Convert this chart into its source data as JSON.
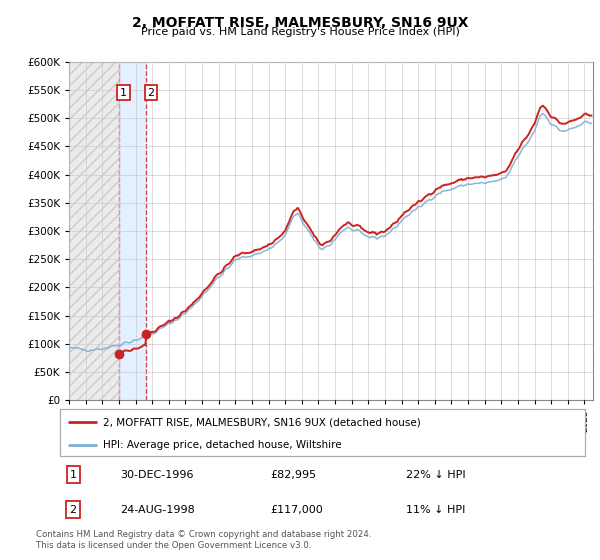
{
  "title": "2, MOFFATT RISE, MALMESBURY, SN16 9UX",
  "subtitle": "Price paid vs. HM Land Registry's House Price Index (HPI)",
  "legend_line1": "2, MOFFATT RISE, MALMESBURY, SN16 9UX (detached house)",
  "legend_line2": "HPI: Average price, detached house, Wiltshire",
  "transaction1_date": "30-DEC-1996",
  "transaction1_price": 82995,
  "transaction1_label": "22% ↓ HPI",
  "transaction2_date": "24-AUG-1998",
  "transaction2_price": 117000,
  "transaction2_label": "11% ↓ HPI",
  "footer_line1": "Contains HM Land Registry data © Crown copyright and database right 2024.",
  "footer_line2": "This data is licensed under the Open Government Licence v3.0.",
  "hpi_color": "#7bafd4",
  "price_color": "#cc2222",
  "highlight_bg_color": "#ddeeff",
  "xmin": 1994.0,
  "xmax": 2025.5,
  "ymin": 0,
  "ymax": 600000,
  "t1_year": 1996.9945,
  "t2_year": 1998.6438,
  "t1_price": 82995,
  "t2_price": 117000
}
